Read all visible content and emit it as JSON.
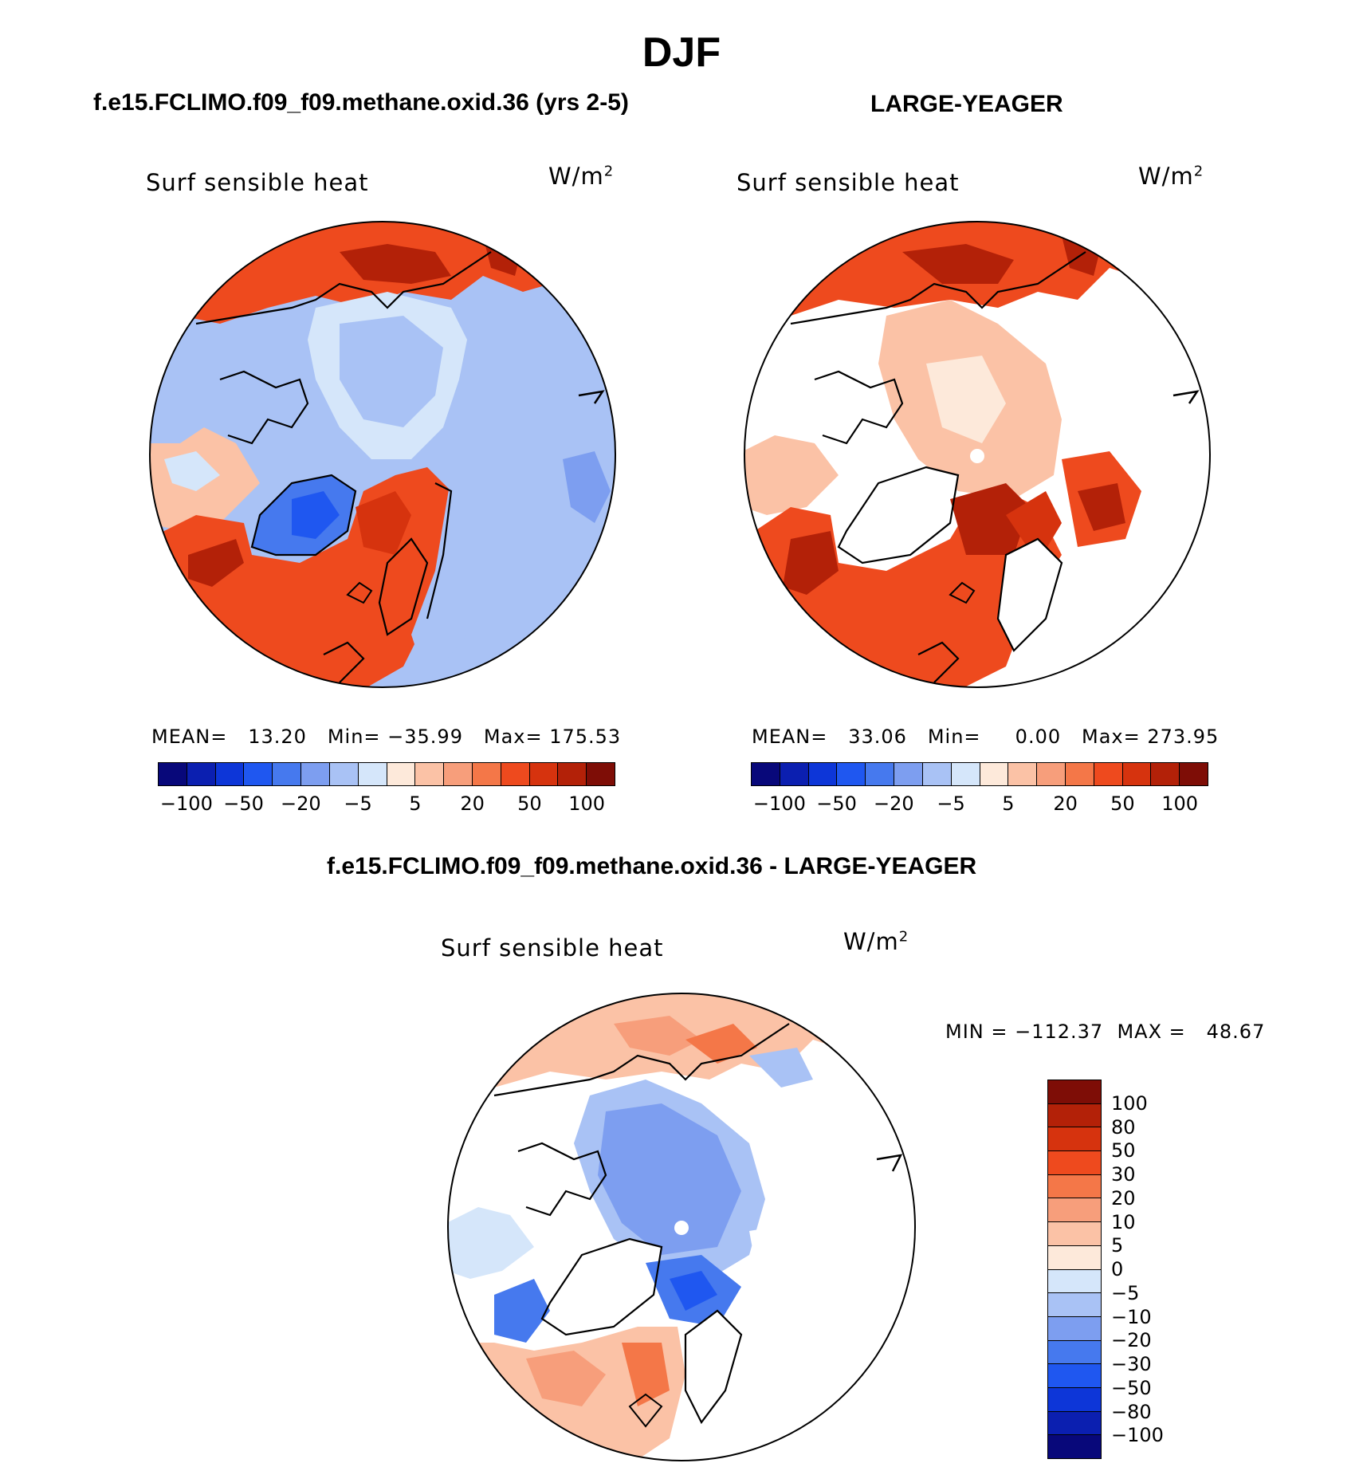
{
  "page": {
    "season": "DJF",
    "left_title": "f.e15.FCLIMO.f09_f09.methane.oxid.36 (yrs 2-5)",
    "right_title": "LARGE-YEAGER",
    "diff_title": "f.e15.FCLIMO.f09_f09.methane.oxid.36 - LARGE-YEAGER"
  },
  "panels": {
    "left": {
      "variable": "Surf sensible heat",
      "units": "W/m",
      "units_sup": "2",
      "stats": "MEAN=   13.20   Min= −35.99   Max= 175.53",
      "stats_values": {
        "mean": 13.2,
        "min": -35.99,
        "max": 175.53
      }
    },
    "right": {
      "variable": "Surf sensible heat",
      "units": "W/m",
      "units_sup": "2",
      "stats": "MEAN=   33.06   Min=     0.00   Max= 273.95",
      "stats_values": {
        "mean": 33.06,
        "min": 0.0,
        "max": 273.95
      }
    },
    "diff": {
      "variable": "Surf sensible heat",
      "units": "W/m",
      "units_sup": "2",
      "stats": "MIN = −112.37  MAX =   48.67",
      "stats_values": {
        "min": -112.37,
        "max": 48.67
      }
    }
  },
  "colorbar_horizontal": {
    "colors": [
      "#08087a",
      "#0b1fb0",
      "#0d36d8",
      "#1f57f0",
      "#4679ee",
      "#7d9ef0",
      "#a9c2f5",
      "#d5e6fa",
      "#fde9da",
      "#fbc2a6",
      "#f79e7b",
      "#f47748",
      "#ee4a1e",
      "#d6330e",
      "#b32108",
      "#7e0d06"
    ],
    "tick_labels": [
      "−100",
      "−50",
      "−20",
      "−5",
      "5",
      "20",
      "50",
      "100"
    ]
  },
  "colorbar_vertical": {
    "colors": [
      "#7e0d06",
      "#b32108",
      "#d6330e",
      "#ee4a1e",
      "#f47748",
      "#f79e7b",
      "#fbc2a6",
      "#fde9da",
      "#d5e6fa",
      "#a9c2f5",
      "#7d9ef0",
      "#4679ee",
      "#1f57f0",
      "#0d36d8",
      "#0b1fb0",
      "#08087a"
    ],
    "labels": [
      "100",
      "80",
      "50",
      "30",
      "20",
      "10",
      "5",
      "0",
      "−5",
      "−10",
      "−20",
      "−30",
      "−50",
      "−80",
      "−100"
    ]
  },
  "map_colors": {
    "neg_light": "#d5e6fa",
    "neg_med": "#a9c2f5",
    "neg_dark": "#7d9ef0",
    "neg_strong": "#4679ee",
    "neg_deep": "#1f57f0",
    "pos_light": "#fde9da",
    "pos_med": "#fbc2a6",
    "pos_orange": "#f79e7b",
    "pos_strong": "#ee4a1e",
    "pos_deep": "#d6330e",
    "pos_dark": "#b32108"
  }
}
